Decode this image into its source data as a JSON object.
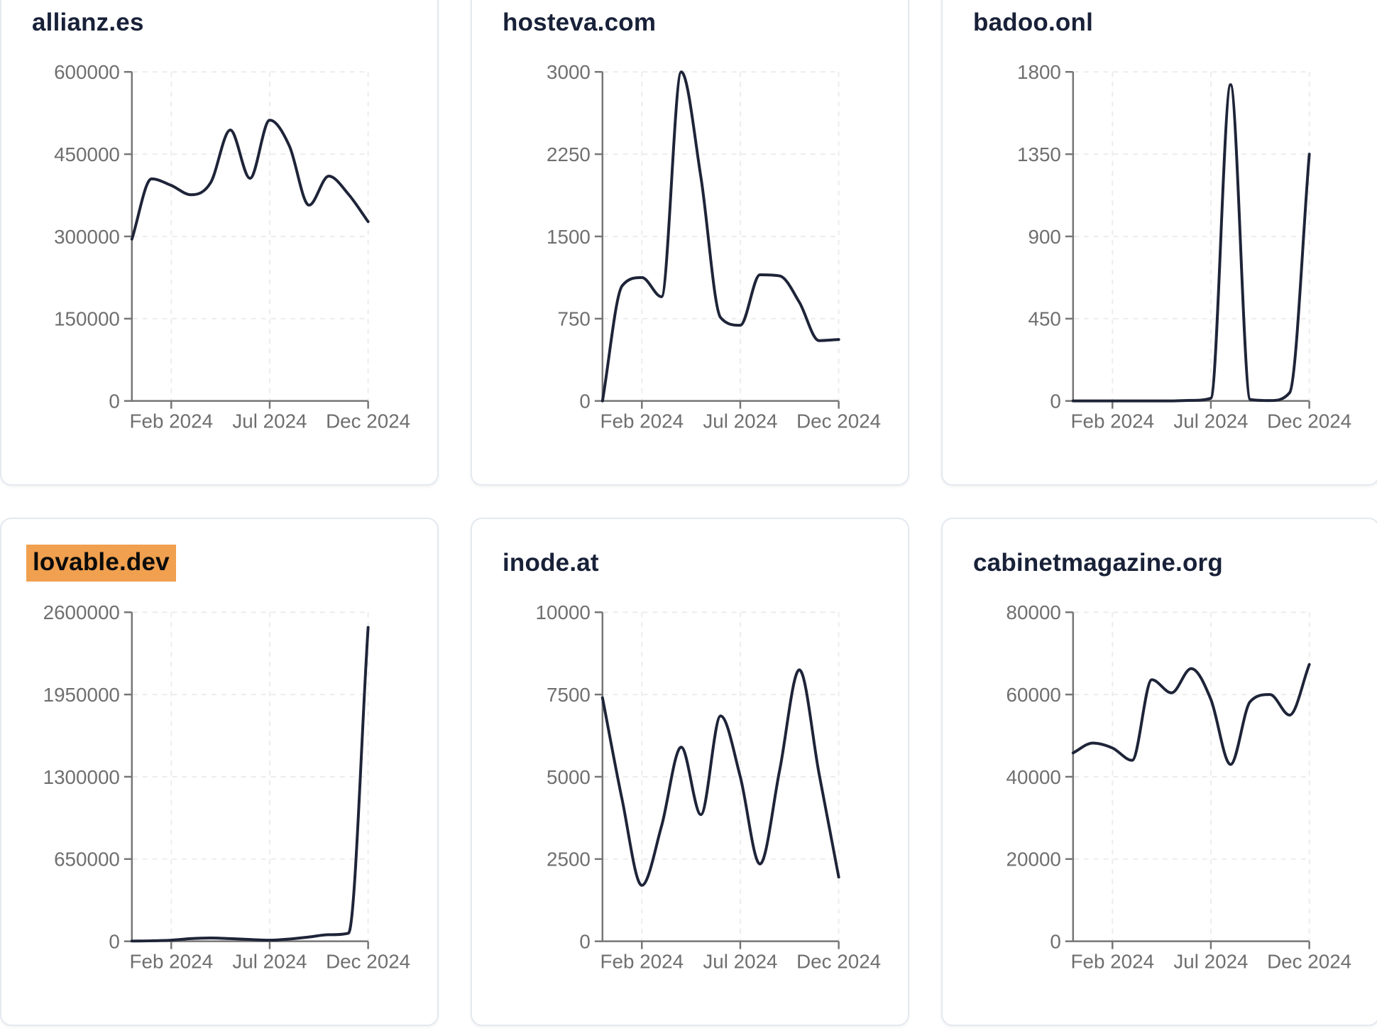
{
  "theme": {
    "page_bg": "#ffffff",
    "card_bg": "#ffffff",
    "card_border": "#e4e9f0",
    "title_color": "#182138",
    "line_color": "#1e2438",
    "axis_color": "#767676",
    "tick_label_color": "#6f6f6f",
    "grid_color": "#ececec",
    "highlight_bg": "#f0a04f",
    "highlight_text": "#0b0b0b"
  },
  "x_axis": {
    "tick_labels": [
      "Feb 2024",
      "Jul 2024",
      "Dec 2024"
    ],
    "tick_month_indices": [
      2,
      7,
      12
    ]
  },
  "chart_data": [
    {
      "type": "line",
      "title": "allianz.es",
      "highlighted": false,
      "x": [
        "Dec 2023",
        "Jan 2024",
        "Feb 2024",
        "Mar 2024",
        "Apr 2024",
        "May 2024",
        "Jun 2024",
        "Jul 2024",
        "Aug 2024",
        "Sep 2024",
        "Oct 2024",
        "Nov 2024",
        "Dec 2024"
      ],
      "values": [
        295000,
        405000,
        393000,
        376000,
        398000,
        494000,
        406000,
        512000,
        465000,
        357000,
        410000,
        377000,
        327000
      ],
      "y_ticks": [
        0,
        150000,
        300000,
        450000,
        600000
      ],
      "y_max": 600000,
      "xlabel": "",
      "ylabel": "",
      "grid": true,
      "legend": false
    },
    {
      "type": "line",
      "title": "hosteva.com",
      "highlighted": false,
      "x": [
        "Dec 2023",
        "Jan 2024",
        "Feb 2024",
        "Mar 2024",
        "Apr 2024",
        "May 2024",
        "Jun 2024",
        "Jul 2024",
        "Aug 2024",
        "Sep 2024",
        "Oct 2024",
        "Nov 2024",
        "Dec 2024"
      ],
      "values": [
        0,
        1050,
        1125,
        950,
        3000,
        2040,
        760,
        690,
        1150,
        1140,
        900,
        550,
        560
      ],
      "y_ticks": [
        0,
        750,
        1500,
        2250,
        3000
      ],
      "y_max": 3000,
      "xlabel": "",
      "ylabel": "",
      "grid": true,
      "legend": false
    },
    {
      "type": "line",
      "title": "badoo.onl",
      "highlighted": false,
      "x": [
        "Dec 2023",
        "Jan 2024",
        "Feb 2024",
        "Mar 2024",
        "Apr 2024",
        "May 2024",
        "Jun 2024",
        "Jul 2024",
        "Aug 2024",
        "Sep 2024",
        "Oct 2024",
        "Nov 2024",
        "Dec 2024"
      ],
      "values": [
        0,
        0,
        0,
        0,
        0,
        0,
        3,
        15,
        1730,
        8,
        2,
        45,
        1350
      ],
      "y_ticks": [
        0,
        450,
        900,
        1350,
        1800
      ],
      "y_max": 1800,
      "xlabel": "",
      "ylabel": "",
      "grid": true,
      "legend": false
    },
    {
      "type": "line",
      "title": "lovable.dev",
      "highlighted": true,
      "x": [
        "Dec 2023",
        "Jan 2024",
        "Feb 2024",
        "Mar 2024",
        "Apr 2024",
        "May 2024",
        "Jun 2024",
        "Jul 2024",
        "Aug 2024",
        "Sep 2024",
        "Oct 2024",
        "Nov 2024",
        "Dec 2024"
      ],
      "values": [
        2000,
        4000,
        9000,
        21000,
        26000,
        21000,
        14000,
        9000,
        18000,
        34000,
        52000,
        64000,
        2480000
      ],
      "y_ticks": [
        0,
        650000,
        1300000,
        1950000,
        2600000
      ],
      "y_max": 2600000,
      "xlabel": "",
      "ylabel": "",
      "grid": true,
      "legend": false
    },
    {
      "type": "line",
      "title": "inode.at",
      "highlighted": false,
      "x": [
        "Dec 2023",
        "Jan 2024",
        "Feb 2024",
        "Mar 2024",
        "Apr 2024",
        "May 2024",
        "Jun 2024",
        "Jul 2024",
        "Aug 2024",
        "Sep 2024",
        "Oct 2024",
        "Nov 2024",
        "Dec 2024"
      ],
      "values": [
        7400,
        4300,
        1700,
        3500,
        5900,
        3850,
        6850,
        5000,
        2350,
        5200,
        8250,
        5100,
        1950
      ],
      "y_ticks": [
        0,
        2500,
        5000,
        7500,
        10000
      ],
      "y_max": 10000,
      "xlabel": "",
      "ylabel": "",
      "grid": true,
      "legend": false
    },
    {
      "type": "line",
      "title": "cabinetmagazine.org",
      "highlighted": false,
      "x": [
        "Dec 2023",
        "Jan 2024",
        "Feb 2024",
        "Mar 2024",
        "Apr 2024",
        "May 2024",
        "Jun 2024",
        "Jul 2024",
        "Aug 2024",
        "Sep 2024",
        "Oct 2024",
        "Nov 2024",
        "Dec 2024"
      ],
      "values": [
        45800,
        48200,
        47000,
        44000,
        63600,
        60400,
        66300,
        58800,
        43000,
        58300,
        60000,
        55000,
        67300
      ],
      "y_ticks": [
        0,
        20000,
        40000,
        60000,
        80000
      ],
      "y_max": 80000,
      "xlabel": "",
      "ylabel": "",
      "grid": true,
      "legend": false
    }
  ]
}
